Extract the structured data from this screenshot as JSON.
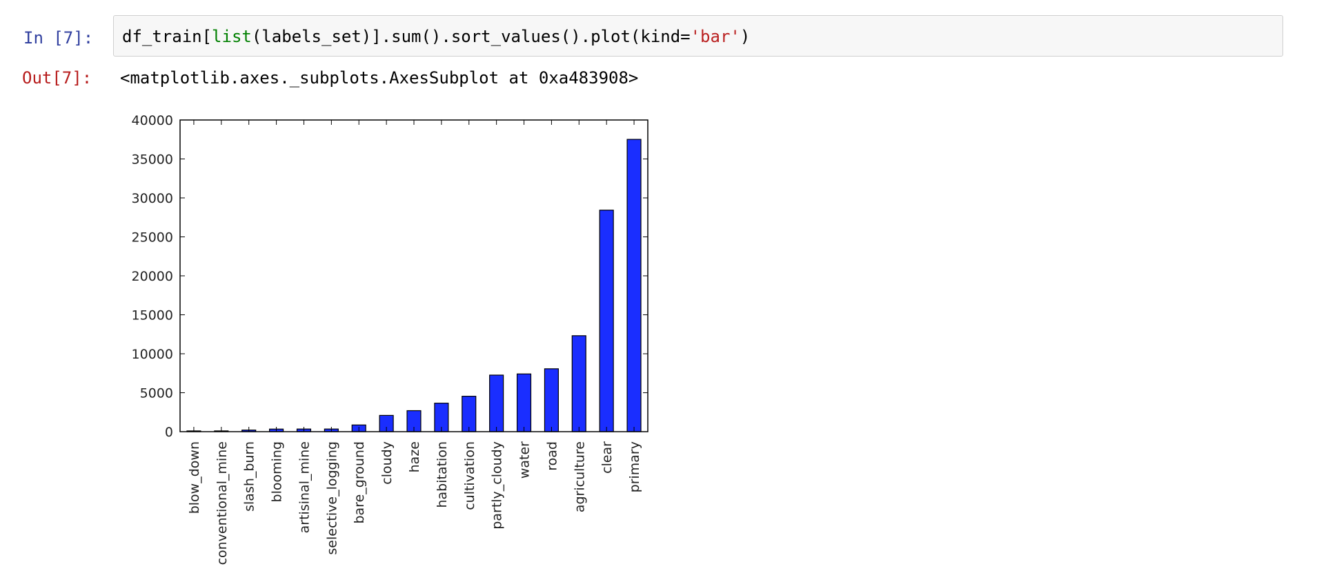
{
  "input_cell": {
    "prompt": "In [7]:",
    "code_parts": {
      "p1": "df_train[",
      "builtin": "list",
      "p2": "(labels_set)].sum().sort_values().plot(kind=",
      "string": "'bar'",
      "p3": ")"
    }
  },
  "output_cell": {
    "prompt": "Out[7]:",
    "text": "<matplotlib.axes._subplots.AxesSubplot at 0xa483908>"
  },
  "colors": {
    "bar": "#1a2eff",
    "in_prompt": "#303f9f",
    "out_prompt": "#b71c1c"
  },
  "chart_data": {
    "type": "bar",
    "categories": [
      "blow_down",
      "conventional_mine",
      "slash_burn",
      "blooming",
      "artisinal_mine",
      "selective_logging",
      "bare_ground",
      "cloudy",
      "haze",
      "habitation",
      "cultivation",
      "partly_cloudy",
      "water",
      "road",
      "agriculture",
      "clear",
      "primary"
    ],
    "values": [
      98,
      100,
      209,
      332,
      339,
      340,
      862,
      2089,
      2697,
      3660,
      4547,
      7261,
      7411,
      8071,
      12315,
      28431,
      37513
    ],
    "ylim": [
      0,
      40000
    ],
    "yticks": [
      0,
      5000,
      10000,
      15000,
      20000,
      25000,
      30000,
      35000,
      40000
    ],
    "xlabel": "",
    "ylabel": "",
    "title": "",
    "grid": false,
    "legend": false
  }
}
